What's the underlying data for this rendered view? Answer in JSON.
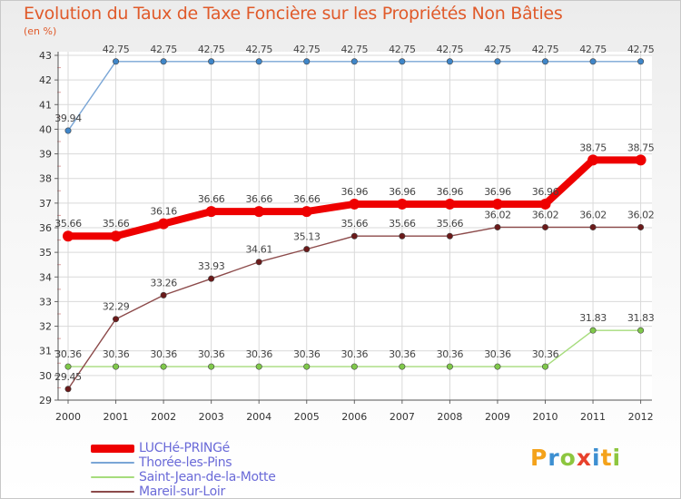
{
  "chart_data": {
    "type": "line",
    "title": "Evolution du Taux de Taxe Foncière sur les Propriétés Non Bâties",
    "ylabel": "(en %)",
    "xlabel": "",
    "ylim": [
      29,
      43
    ],
    "yticks": [
      29,
      30,
      31,
      32,
      33,
      34,
      35,
      36,
      37,
      38,
      39,
      40,
      41,
      42,
      43
    ],
    "categories": [
      "2000",
      "2001",
      "2002",
      "2003",
      "2004",
      "2005",
      "2006",
      "2007",
      "2008",
      "2009",
      "2010",
      "2011",
      "2012"
    ],
    "series": [
      {
        "name": "LUCHé-PRINGé",
        "color": "#ee0000",
        "marker_color": "#ee0000",
        "values": [
          35.66,
          35.66,
          36.16,
          36.66,
          36.66,
          36.66,
          36.96,
          36.96,
          36.96,
          36.96,
          36.96,
          38.75,
          38.75
        ],
        "labels": [
          "35.66",
          "35.66",
          "36.16",
          "36.66",
          "36.66",
          "36.66",
          "36.96",
          "36.96",
          "36.96",
          "36.96",
          "36.96",
          "38.75",
          "38.75"
        ]
      },
      {
        "name": "Thorée-les-Pins",
        "color": "#7aa6d6",
        "marker_color": "#3f86c9",
        "values": [
          39.94,
          42.75,
          42.75,
          42.75,
          42.75,
          42.75,
          42.75,
          42.75,
          42.75,
          42.75,
          42.75,
          42.75,
          42.75
        ],
        "labels": [
          "39.94",
          "42.75",
          "42.75",
          "42.75",
          "42.75",
          "42.75",
          "42.75",
          "42.75",
          "42.75",
          "42.75",
          "42.75",
          "42.75",
          "42.75"
        ]
      },
      {
        "name": "Saint-Jean-de-la-Motte",
        "color": "#a6dc7c",
        "marker_color": "#7fc84a",
        "values": [
          30.36,
          30.36,
          30.36,
          30.36,
          30.36,
          30.36,
          30.36,
          30.36,
          30.36,
          30.36,
          30.36,
          31.83,
          31.83
        ],
        "labels": [
          "30.36",
          "30.36",
          "30.36",
          "30.36",
          "30.36",
          "30.36",
          "30.36",
          "30.36",
          "30.36",
          "30.36",
          "30.36",
          "31.83",
          "31.83"
        ]
      },
      {
        "name": "Mareil-sur-Loir",
        "color": "#8c4a4a",
        "marker_color": "#6b1a1a",
        "values": [
          29.45,
          32.29,
          33.26,
          33.93,
          34.61,
          35.13,
          35.66,
          35.66,
          35.66,
          36.02,
          36.02,
          36.02,
          36.02
        ],
        "labels": [
          "29.45",
          "32.29",
          "33.26",
          "33.93",
          "34.61",
          "35.13",
          "35.66",
          "35.66",
          "35.66",
          "36.02",
          "36.02",
          "36.02",
          "36.02"
        ]
      }
    ]
  },
  "logo": {
    "letters": [
      "P",
      "r",
      "o",
      "x",
      "i",
      "t",
      "i"
    ],
    "colors": [
      "#f4a21a",
      "#3d8fd1",
      "#8dc63f",
      "#e8412c",
      "#3d8fd1",
      "#f4a21a",
      "#8dc63f"
    ]
  }
}
